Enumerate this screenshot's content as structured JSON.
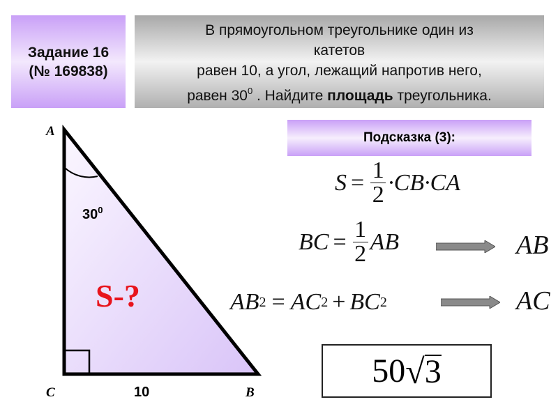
{
  "task": {
    "line1": "Задание 16",
    "line2": "(№ 169838)"
  },
  "condition": {
    "line1": "В прямоугольном треугольнике один из",
    "line2": "катетов",
    "line3": "равен 10, а угол, лежащий напротив него,",
    "line4_pre": "равен 30",
    "line4_sup": "0",
    "line4_mid": " . Найдите ",
    "line4_bold": "площадь",
    "line4_post": " треугольника."
  },
  "hint": {
    "label": "Подсказка (3):"
  },
  "figure": {
    "vertex_a": "A",
    "vertex_b": "B",
    "vertex_c": "C",
    "angle_value": "30",
    "angle_sup": "0",
    "side_cb": "10",
    "question": "S-?",
    "fill_color": "#e6d8fb",
    "question_color": "#e8141c"
  },
  "formulas": {
    "f1": {
      "lhs": "S",
      "eq": "=",
      "num": "1",
      "den": "2",
      "rhs": "·CB·CA"
    },
    "f2": {
      "lhs": "BC",
      "eq": "=",
      "num": "1",
      "den": "2",
      "rhs": "AB",
      "result": "AB"
    },
    "f3": {
      "a": "AB",
      "b": "AC",
      "c": "BC",
      "exp": "2",
      "eq": "=",
      "plus": "+",
      "result": "AC"
    }
  },
  "answer": {
    "coef": "50",
    "radical": "3"
  }
}
